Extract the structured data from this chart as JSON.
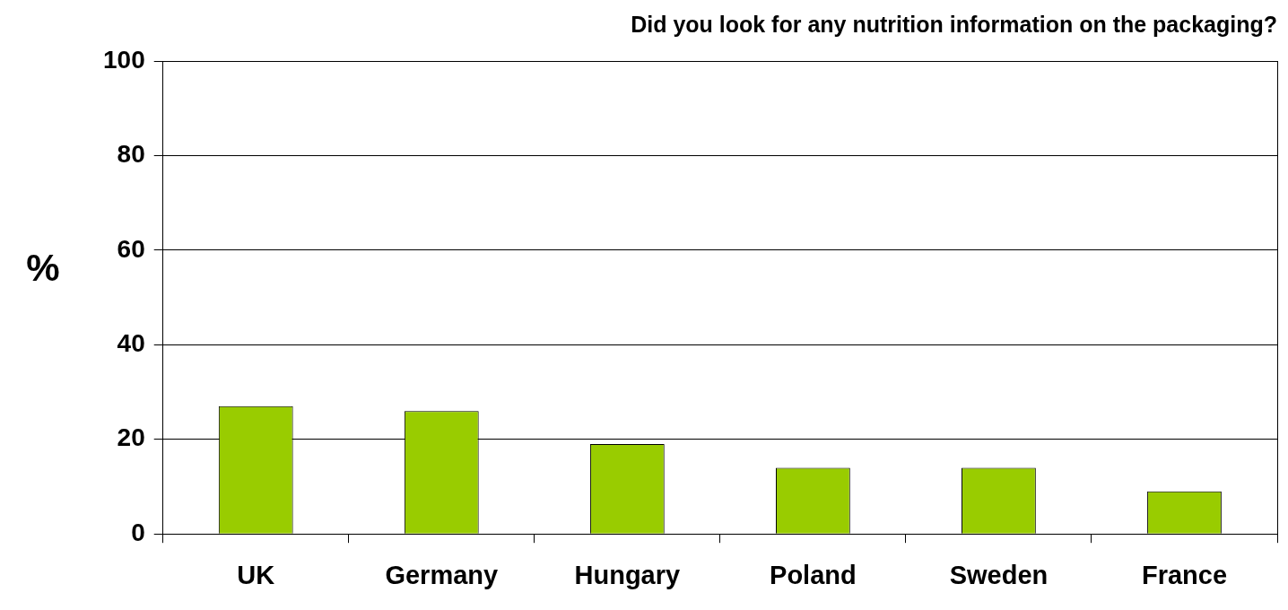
{
  "chart_data": {
    "type": "bar",
    "title": "Did you look for any nutrition information on the packaging?",
    "ylabel": "%",
    "categories": [
      "UK",
      "Germany",
      "Hungary",
      "Poland",
      "Sweden",
      "France"
    ],
    "values": [
      27,
      26,
      19,
      14,
      14,
      9
    ],
    "color": "#99cc00",
    "ylim": [
      0,
      100
    ],
    "yticks": [
      0,
      20,
      40,
      60,
      80,
      100
    ],
    "grid": "y",
    "legend": false
  }
}
